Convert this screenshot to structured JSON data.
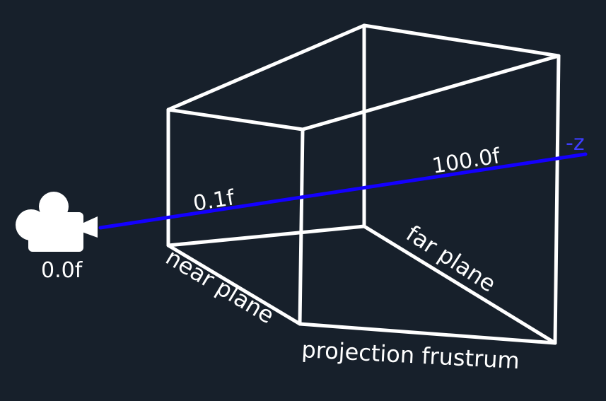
{
  "colors": {
    "background": "#17202b",
    "frustum_lines": "#ffffff",
    "z_axis": "#1400ff",
    "axis_label": "#3d3dff",
    "text": "#ffffff"
  },
  "camera": {
    "icon": "camera-icon",
    "label": "0.0f"
  },
  "axis": {
    "label": "-z",
    "near_value": "0.1f",
    "far_value": "100.0f"
  },
  "labels": {
    "near_plane": "near plane",
    "far_plane": "far plane",
    "frustum": "projection frustrum"
  }
}
